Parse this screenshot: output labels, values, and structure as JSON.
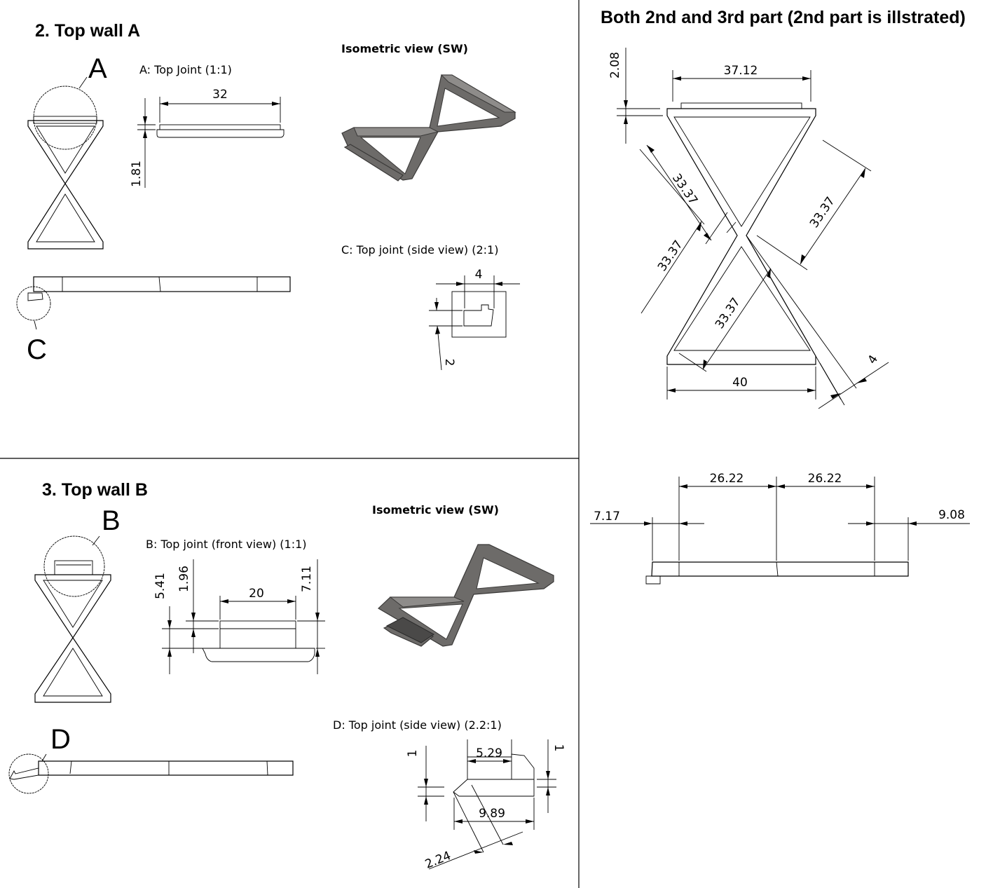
{
  "sheet": {
    "top_wall_a": {
      "title": "2. Top wall A",
      "detail_a_caption": "A: Top Joint (1:1)",
      "detail_c_caption": "C: Top joint (side view)  (2:1)",
      "iso_caption": "Isometric view (SW)",
      "label_a": "A",
      "label_c": "C",
      "dims": {
        "width_32": "32",
        "height_1_81": "1.81",
        "c_width_4": "4",
        "c_height_2": "2"
      }
    },
    "top_wall_b": {
      "title": "3. Top wall B",
      "detail_b_caption": "B: Top joint (front view) (1:1)",
      "detail_d_caption": "D: Top joint (side view) (2.2:1)",
      "iso_caption": "Isometric view (SW)",
      "label_b": "B",
      "label_d": "D",
      "dims": {
        "h_5_41": "5.41",
        "h_1_96": "1.96",
        "w_20": "20",
        "h_7_11": "7.11",
        "d_1_left": "1",
        "d_5_29": "5.29",
        "d_1_right": "1",
        "d_9_89": "9.89",
        "d_2_24": "2.24"
      }
    },
    "shared": {
      "title": "Both 2nd and 3rd part (2nd part is illstrated)",
      "dims": {
        "top_37_12": "37.12",
        "left_2_08": "2.08",
        "diag_upper_left": "33.37",
        "diag_upper_right": "33.37",
        "diag_lower_left": "33.37",
        "diag_lower_mid": "33.37",
        "bottom_40": "40",
        "thick_4": "4",
        "seg_26_22_a": "26.22",
        "seg_26_22_b": "26.22",
        "left_7_17": "7.17",
        "right_9_08": "9.08"
      }
    }
  }
}
